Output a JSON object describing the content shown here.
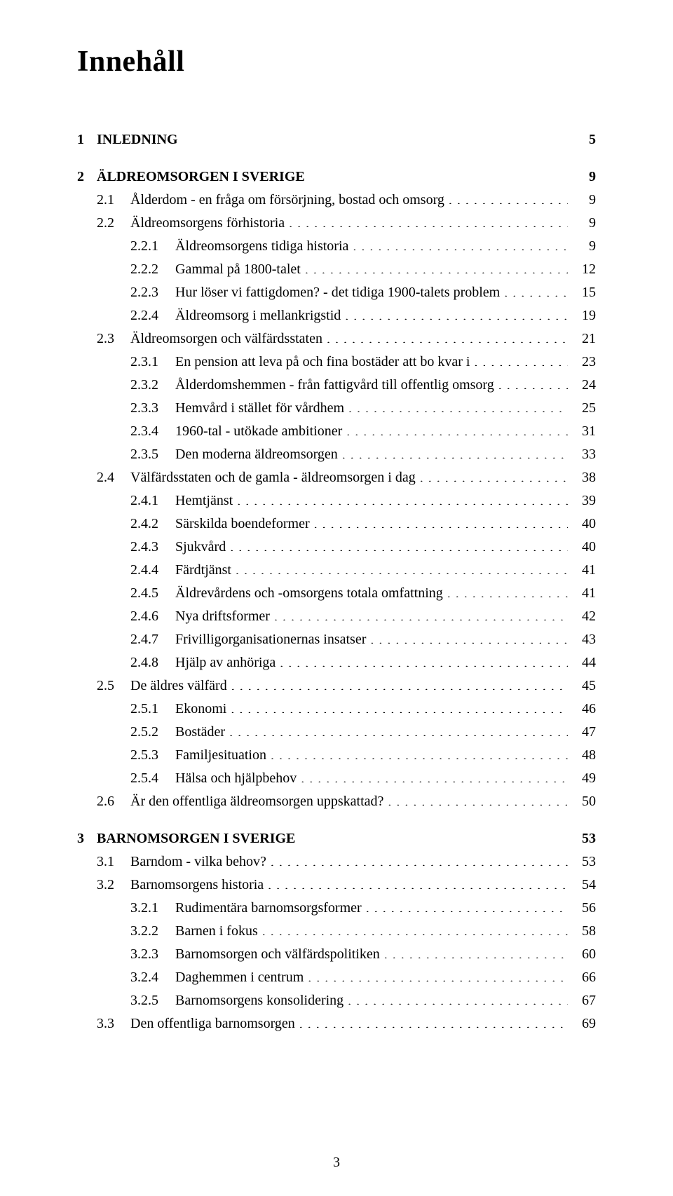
{
  "title": "Innehåll",
  "page_number": "3",
  "toc": [
    {
      "level": "chapter",
      "num": "1",
      "label": "INLEDNING",
      "page": "5"
    },
    {
      "level": "chapter",
      "num": "2",
      "label": "ÄLDREOMSORGEN I SVERIGE",
      "page": "9"
    },
    {
      "level": "section",
      "num": "2.1",
      "label": "Ålderdom - en fråga om försörjning, bostad och omsorg",
      "page": "9"
    },
    {
      "level": "section",
      "num": "2.2",
      "label": "Äldreomsorgens förhistoria",
      "page": "9"
    },
    {
      "level": "subsec",
      "num": "2.2.1",
      "label": "Äldreomsorgens tidiga historia",
      "page": "9"
    },
    {
      "level": "subsec",
      "num": "2.2.2",
      "label": "Gammal på 1800-talet",
      "page": "12"
    },
    {
      "level": "subsec",
      "num": "2.2.3",
      "label": "Hur löser vi fattigdomen? - det tidiga 1900-talets problem",
      "page": "15"
    },
    {
      "level": "subsec",
      "num": "2.2.4",
      "label": "Äldreomsorg i mellankrigstid",
      "page": "19"
    },
    {
      "level": "section",
      "num": "2.3",
      "label": "Äldreomsorgen och välfärdsstaten",
      "page": "21"
    },
    {
      "level": "subsec",
      "num": "2.3.1",
      "label": "En pension att leva på och fina bostäder att bo kvar i",
      "page": "23"
    },
    {
      "level": "subsec",
      "num": "2.3.2",
      "label": "Ålderdomshemmen - från fattigvård till offentlig omsorg",
      "page": "24"
    },
    {
      "level": "subsec",
      "num": "2.3.3",
      "label": "Hemvård i stället för vårdhem",
      "page": "25"
    },
    {
      "level": "subsec",
      "num": "2.3.4",
      "label": "1960-tal - utökade ambitioner",
      "page": "31"
    },
    {
      "level": "subsec",
      "num": "2.3.5",
      "label": "Den moderna äldreomsorgen",
      "page": "33"
    },
    {
      "level": "section",
      "num": "2.4",
      "label": "Välfärdsstaten och de gamla - äldreomsorgen i dag",
      "page": "38"
    },
    {
      "level": "subsec",
      "num": "2.4.1",
      "label": "Hemtjänst",
      "page": "39"
    },
    {
      "level": "subsec",
      "num": "2.4.2",
      "label": "Särskilda boendeformer",
      "page": "40"
    },
    {
      "level": "subsec",
      "num": "2.4.3",
      "label": "Sjukvård",
      "page": "40"
    },
    {
      "level": "subsec",
      "num": "2.4.4",
      "label": "Färdtjänst",
      "page": "41"
    },
    {
      "level": "subsec",
      "num": "2.4.5",
      "label": "Äldrevårdens och -omsorgens totala omfattning",
      "page": "41"
    },
    {
      "level": "subsec",
      "num": "2.4.6",
      "label": "Nya driftsformer",
      "page": "42"
    },
    {
      "level": "subsec",
      "num": "2.4.7",
      "label": "Frivilligorganisationernas insatser",
      "page": "43"
    },
    {
      "level": "subsec",
      "num": "2.4.8",
      "label": "Hjälp av anhöriga",
      "page": "44"
    },
    {
      "level": "section",
      "num": "2.5",
      "label": "De äldres välfärd",
      "page": "45"
    },
    {
      "level": "subsec",
      "num": "2.5.1",
      "label": "Ekonomi",
      "page": "46"
    },
    {
      "level": "subsec",
      "num": "2.5.2",
      "label": "Bostäder",
      "page": "47"
    },
    {
      "level": "subsec",
      "num": "2.5.3",
      "label": "Familjesituation",
      "page": "48"
    },
    {
      "level": "subsec",
      "num": "2.5.4",
      "label": "Hälsa och hjälpbehov",
      "page": "49"
    },
    {
      "level": "section",
      "num": "2.6",
      "label": "Är den offentliga äldreomsorgen uppskattad?",
      "page": "50"
    },
    {
      "level": "chapter",
      "num": "3",
      "label": "BARNOMSORGEN I SVERIGE",
      "page": "53"
    },
    {
      "level": "section",
      "num": "3.1",
      "label": "Barndom - vilka behov?",
      "page": "53"
    },
    {
      "level": "section",
      "num": "3.2",
      "label": "Barnomsorgens historia",
      "page": "54"
    },
    {
      "level": "subsec",
      "num": "3.2.1",
      "label": "Rudimentära barnomsorgsformer",
      "page": "56"
    },
    {
      "level": "subsec",
      "num": "3.2.2",
      "label": "Barnen i fokus",
      "page": "58"
    },
    {
      "level": "subsec",
      "num": "3.2.3",
      "label": "Barnomsorgen och välfärdspolitiken",
      "page": "60"
    },
    {
      "level": "subsec",
      "num": "3.2.4",
      "label": "Daghemmen i centrum",
      "page": "66"
    },
    {
      "level": "subsec",
      "num": "3.2.5",
      "label": "Barnomsorgens konsolidering",
      "page": "67"
    },
    {
      "level": "section",
      "num": "3.3",
      "label": "Den offentliga barnomsorgen",
      "page": "69"
    }
  ],
  "styles": {
    "background": "#ffffff",
    "text_color": "#000000",
    "title_fontsize_pt": 32,
    "body_fontsize_pt": 15,
    "font_family": "Times New Roman"
  }
}
